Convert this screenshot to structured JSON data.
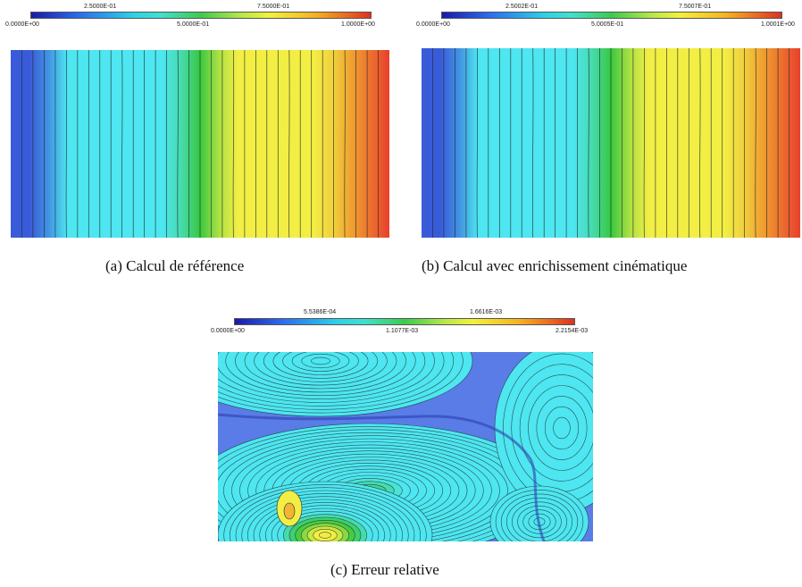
{
  "panel_a": {
    "colorbar": {
      "top_ticks": [
        "2.5000E-01",
        "7.5000E-01"
      ],
      "bottom_ticks": [
        "0.0000E+00",
        "5.0000E-01",
        "1.0000E+00"
      ]
    },
    "caption": "(a)  Calcul de référence",
    "field": "vertical-bands"
  },
  "panel_b": {
    "colorbar": {
      "top_ticks": [
        "2.5002E-01",
        "7.5007E-01"
      ],
      "bottom_ticks": [
        "0.0000E+00",
        "5.0005E-01",
        "1.0001E+00"
      ]
    },
    "caption": "(b)  Calcul avec enrichissement cinématique",
    "field": "vertical-bands"
  },
  "panel_c": {
    "colorbar": {
      "top_ticks": [
        "5.5386E-04",
        "1.6616E-03"
      ],
      "bottom_ticks": [
        "0.0000E+00",
        "1.1077E-03",
        "2.2154E-03"
      ]
    },
    "caption": "(c)  Erreur relative",
    "field": "error-contours"
  },
  "colors": {
    "blue": "#3a5bd9",
    "cyan": "#4ee6f0",
    "green": "#38c840",
    "yellow": "#f2ee44",
    "orange": "#f0a030",
    "red": "#e8402c",
    "contour": "#1b2a2a"
  }
}
